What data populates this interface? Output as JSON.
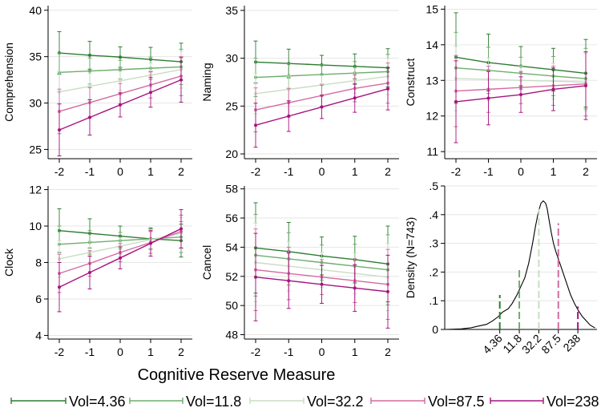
{
  "figure": {
    "shared_xlabel": "Cognitive Reserve Measure",
    "legend": [
      {
        "label": "Vol=4.36",
        "color": "#2e7d32"
      },
      {
        "label": "Vol=11.8",
        "color": "#6dae6b"
      },
      {
        "label": "Vol=32.2",
        "color": "#c8ddc4"
      },
      {
        "label": "Vol=87.5",
        "color": "#d36b9f"
      },
      {
        "label": "Vol=238",
        "color": "#a6137f"
      }
    ]
  },
  "chart_data": [
    {
      "type": "line",
      "id": "comprehension",
      "ylabel": "Comprehension",
      "x": [
        -2,
        -1,
        0,
        1,
        2
      ],
      "xticks": [
        "-2",
        "-1",
        "0",
        "1",
        "2"
      ],
      "ylim": [
        24,
        40.5
      ],
      "yticks": [
        25,
        30,
        35,
        40
      ],
      "grid": true,
      "series": [
        {
          "name": "Vol=4.36",
          "values": [
            35.4,
            35.15,
            34.95,
            34.7,
            34.45
          ],
          "ci": [
            2.3,
            1.5,
            1.1,
            1.3,
            2.0
          ]
        },
        {
          "name": "Vol=11.8",
          "values": [
            33.3,
            33.45,
            33.6,
            33.75,
            33.9
          ],
          "ci": [
            2.1,
            1.4,
            1.0,
            1.2,
            1.9
          ]
        },
        {
          "name": "Vol=32.2",
          "values": [
            31.2,
            31.8,
            32.4,
            33.0,
            33.6
          ],
          "ci": [
            2.2,
            1.4,
            1.0,
            1.3,
            2.0
          ]
        },
        {
          "name": "Vol=87.5",
          "values": [
            29.1,
            30.05,
            31.0,
            31.95,
            32.9
          ],
          "ci": [
            2.4,
            1.6,
            1.1,
            1.4,
            2.1
          ]
        },
        {
          "name": "Vol=238",
          "values": [
            27.1,
            28.45,
            29.8,
            31.15,
            32.5
          ],
          "ci": [
            2.8,
            1.9,
            1.3,
            1.6,
            2.4
          ]
        }
      ]
    },
    {
      "type": "line",
      "id": "naming",
      "ylabel": "Naming",
      "x": [
        -2,
        -1,
        0,
        1,
        2
      ],
      "xticks": [
        "-2",
        "-1",
        "0",
        "1",
        "2"
      ],
      "ylim": [
        19.5,
        35.5
      ],
      "yticks": [
        20,
        25,
        30,
        35
      ],
      "grid": true,
      "series": [
        {
          "name": "Vol=4.36",
          "values": [
            29.6,
            29.45,
            29.3,
            29.15,
            29.0
          ],
          "ci": [
            2.2,
            1.5,
            1.0,
            1.3,
            2.0
          ]
        },
        {
          "name": "Vol=11.8",
          "values": [
            28.0,
            28.15,
            28.3,
            28.45,
            28.6
          ],
          "ci": [
            2.0,
            1.3,
            1.0,
            1.2,
            1.8
          ]
        },
        {
          "name": "Vol=32.2",
          "values": [
            26.3,
            26.75,
            27.2,
            27.65,
            28.1
          ],
          "ci": [
            2.1,
            1.4,
            1.0,
            1.3,
            1.9
          ]
        },
        {
          "name": "Vol=87.5",
          "values": [
            24.6,
            25.35,
            26.1,
            26.85,
            27.4
          ],
          "ci": [
            2.3,
            1.5,
            1.1,
            1.4,
            2.1
          ]
        },
        {
          "name": "Vol=238",
          "values": [
            23.0,
            23.95,
            24.9,
            25.85,
            26.8
          ],
          "ci": [
            2.3,
            1.6,
            1.2,
            1.5,
            2.2
          ]
        }
      ]
    },
    {
      "type": "line",
      "id": "construct",
      "ylabel": "Construct",
      "x": [
        -2,
        -1,
        0,
        1,
        2
      ],
      "xticks": [
        "-2",
        "-1",
        "0",
        "1",
        "2"
      ],
      "ylim": [
        10.8,
        15.1
      ],
      "yticks": [
        11,
        12,
        13,
        14,
        15
      ],
      "grid": true,
      "series": [
        {
          "name": "Vol=4.36",
          "values": [
            13.65,
            13.5,
            13.4,
            13.3,
            13.2
          ],
          "ci": [
            1.25,
            0.8,
            0.55,
            0.6,
            0.95
          ]
        },
        {
          "name": "Vol=11.8",
          "values": [
            13.35,
            13.28,
            13.2,
            13.12,
            13.05
          ],
          "ci": [
            1.0,
            0.65,
            0.45,
            0.55,
            0.85
          ]
        },
        {
          "name": "Vol=32.2",
          "values": [
            13.05,
            13.03,
            13.0,
            12.98,
            12.95
          ],
          "ci": [
            0.9,
            0.6,
            0.4,
            0.5,
            0.8
          ]
        },
        {
          "name": "Vol=87.5",
          "values": [
            12.7,
            12.75,
            12.8,
            12.85,
            12.9
          ],
          "ci": [
            1.0,
            0.65,
            0.45,
            0.55,
            0.9
          ]
        },
        {
          "name": "Vol=238",
          "values": [
            12.4,
            12.5,
            12.6,
            12.75,
            12.85
          ],
          "ci": [
            1.15,
            0.75,
            0.5,
            0.6,
            0.95
          ]
        }
      ]
    },
    {
      "type": "line",
      "id": "clock",
      "ylabel": "Clock",
      "x": [
        -2,
        -1,
        0,
        1,
        2
      ],
      "xticks": [
        "-2",
        "-1",
        "0",
        "1",
        "2"
      ],
      "ylim": [
        3.8,
        12.2
      ],
      "yticks": [
        4,
        6,
        8,
        10,
        12
      ],
      "grid": true,
      "series": [
        {
          "name": "Vol=4.36",
          "values": [
            9.75,
            9.6,
            9.45,
            9.3,
            9.2
          ],
          "ci": [
            1.2,
            0.8,
            0.55,
            0.6,
            0.9
          ]
        },
        {
          "name": "Vol=11.8",
          "values": [
            9.0,
            9.1,
            9.2,
            9.3,
            9.4
          ],
          "ci": [
            1.0,
            0.65,
            0.45,
            0.55,
            0.85
          ]
        },
        {
          "name": "Vol=32.2",
          "values": [
            8.2,
            8.55,
            8.9,
            9.25,
            9.6
          ],
          "ci": [
            1.0,
            0.65,
            0.45,
            0.55,
            0.85
          ]
        },
        {
          "name": "Vol=87.5",
          "values": [
            7.4,
            7.95,
            8.55,
            9.1,
            9.7
          ],
          "ci": [
            1.05,
            0.7,
            0.5,
            0.6,
            0.9
          ]
        },
        {
          "name": "Vol=238",
          "values": [
            6.65,
            7.45,
            8.25,
            9.05,
            9.85
          ],
          "ci": [
            1.35,
            0.9,
            0.6,
            0.7,
            1.05
          ]
        }
      ]
    },
    {
      "type": "line",
      "id": "cancel",
      "ylabel": "Cancel",
      "x": [
        -2,
        -1,
        0,
        1,
        2
      ],
      "xticks": [
        "-2",
        "-1",
        "0",
        "1",
        "2"
      ],
      "ylim": [
        47.7,
        58.2
      ],
      "yticks": [
        48,
        50,
        52,
        54,
        56,
        58
      ],
      "grid": true,
      "series": [
        {
          "name": "Vol=4.36",
          "values": [
            53.95,
            53.7,
            53.4,
            53.15,
            52.85
          ],
          "ci": [
            3.1,
            2.0,
            1.3,
            1.6,
            2.6
          ]
        },
        {
          "name": "Vol=11.8",
          "values": [
            53.45,
            53.2,
            52.95,
            52.7,
            52.45
          ],
          "ci": [
            2.8,
            1.8,
            1.2,
            1.5,
            2.4
          ]
        },
        {
          "name": "Vol=32.2",
          "values": [
            52.95,
            52.7,
            52.45,
            52.2,
            51.95
          ],
          "ci": [
            2.7,
            1.7,
            1.2,
            1.4,
            2.3
          ]
        },
        {
          "name": "Vol=87.5",
          "values": [
            52.45,
            52.2,
            51.95,
            51.7,
            51.45
          ],
          "ci": [
            2.8,
            1.8,
            1.2,
            1.5,
            2.4
          ]
        },
        {
          "name": "Vol=238",
          "values": [
            51.95,
            51.7,
            51.45,
            51.2,
            50.95
          ],
          "ci": [
            3.0,
            1.9,
            1.3,
            1.6,
            2.5
          ]
        }
      ]
    },
    {
      "type": "area",
      "id": "density",
      "ylabel": "Density (N=743)",
      "xlim": [
        -1.35,
        6.45
      ],
      "ylim": [
        0,
        0.5
      ],
      "yticks": [
        0,
        0.1,
        0.2,
        0.3,
        0.4,
        0.5
      ],
      "ytick_labels": [
        "0",
        ".1",
        ".2",
        ".3",
        ".4",
        ".5"
      ],
      "grid": true,
      "curve_x": [
        -1.3,
        -0.5,
        0.0,
        0.4,
        0.8,
        1.1,
        1.4,
        1.6,
        1.9,
        2.1,
        2.35,
        2.55,
        2.75,
        2.95,
        3.15,
        3.3,
        3.45,
        3.58,
        3.7,
        3.82,
        3.9,
        4.0,
        4.1,
        4.22,
        4.35,
        4.5,
        4.7,
        4.9,
        5.1,
        5.3,
        5.5,
        5.7,
        5.9,
        6.1,
        6.35
      ],
      "curve_y": [
        0.0,
        0.002,
        0.006,
        0.012,
        0.018,
        0.03,
        0.045,
        0.06,
        0.072,
        0.09,
        0.12,
        0.15,
        0.18,
        0.23,
        0.3,
        0.36,
        0.41,
        0.44,
        0.448,
        0.44,
        0.42,
        0.38,
        0.34,
        0.3,
        0.27,
        0.24,
        0.2,
        0.16,
        0.12,
        0.09,
        0.065,
        0.045,
        0.03,
        0.015,
        0.005
      ],
      "markers": [
        {
          "label": "4.36",
          "x": 1.47,
          "height": 0.12
        },
        {
          "label": "11.8",
          "x": 2.47,
          "height": 0.21
        },
        {
          "label": "32.2",
          "x": 3.47,
          "height": 0.42
        },
        {
          "label": "87.5",
          "x": 4.47,
          "height": 0.37
        },
        {
          "label": "238",
          "x": 5.47,
          "height": 0.08
        }
      ]
    }
  ]
}
